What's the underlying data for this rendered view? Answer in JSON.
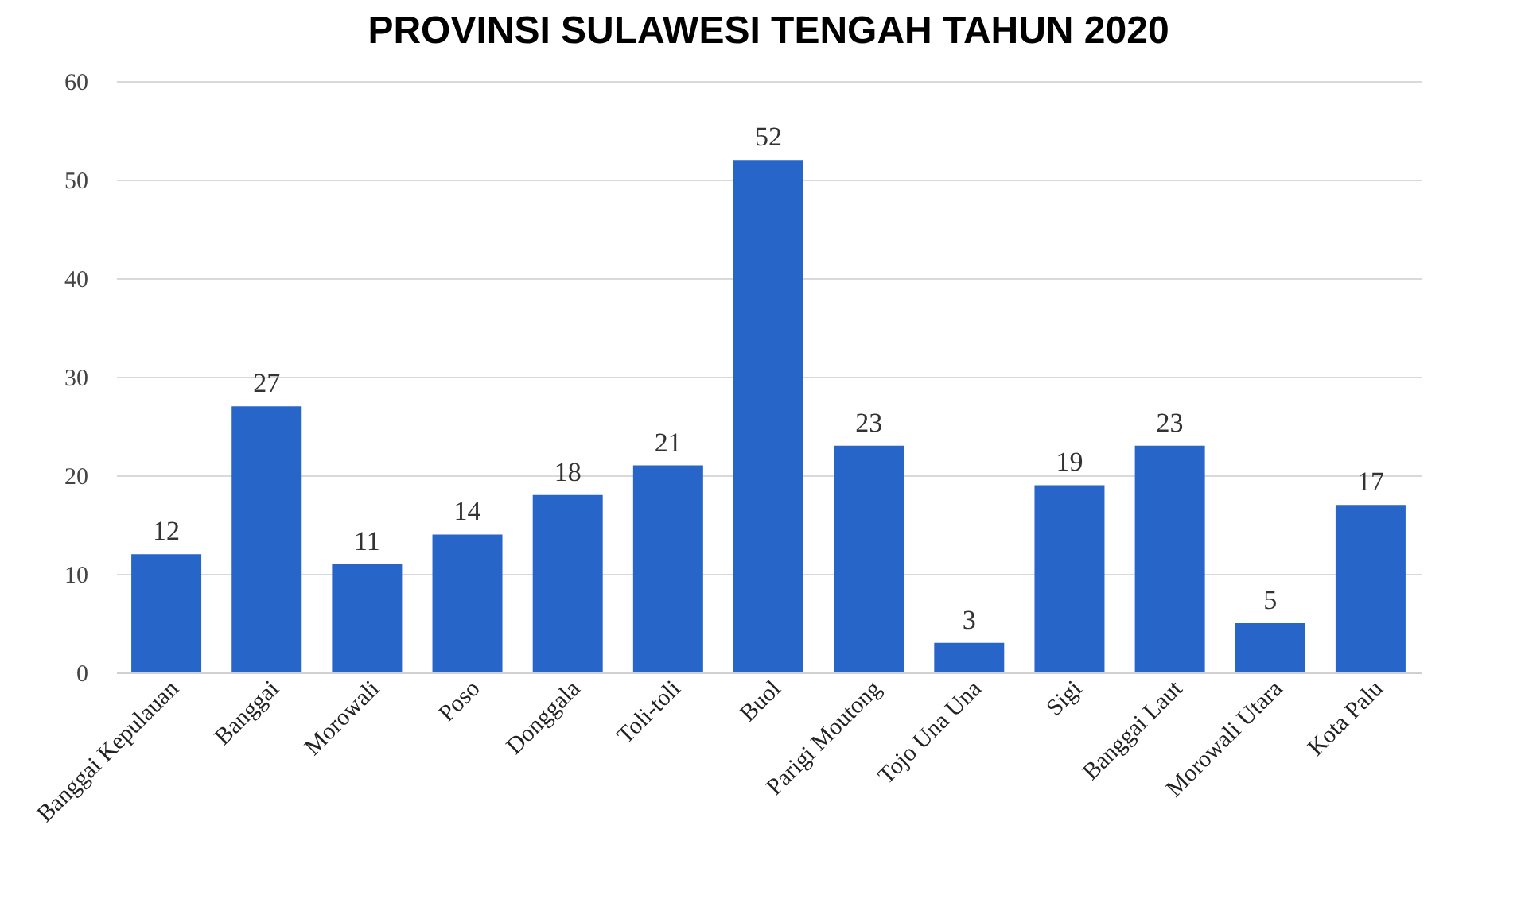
{
  "chart_data": {
    "type": "bar",
    "title": "PROVINSI SULAWESI TENGAH TAHUN 2020",
    "categories": [
      "Banggai Kepulauan",
      "Banggai",
      "Morowali",
      "Poso",
      "Donggala",
      "Toli-toli",
      "Buol",
      "Parigi Moutong",
      "Tojo Una Una",
      "Sigi",
      "Banggai Laut",
      "Morowali Utara",
      "Kota Palu"
    ],
    "values": [
      12,
      27,
      11,
      14,
      18,
      21,
      52,
      23,
      3,
      19,
      23,
      5,
      17
    ],
    "color": "#2766c8",
    "ylim": [
      0,
      60
    ],
    "yticks": [
      0,
      10,
      20,
      30,
      40,
      50,
      60
    ],
    "grid": "y",
    "data_labels": true
  }
}
